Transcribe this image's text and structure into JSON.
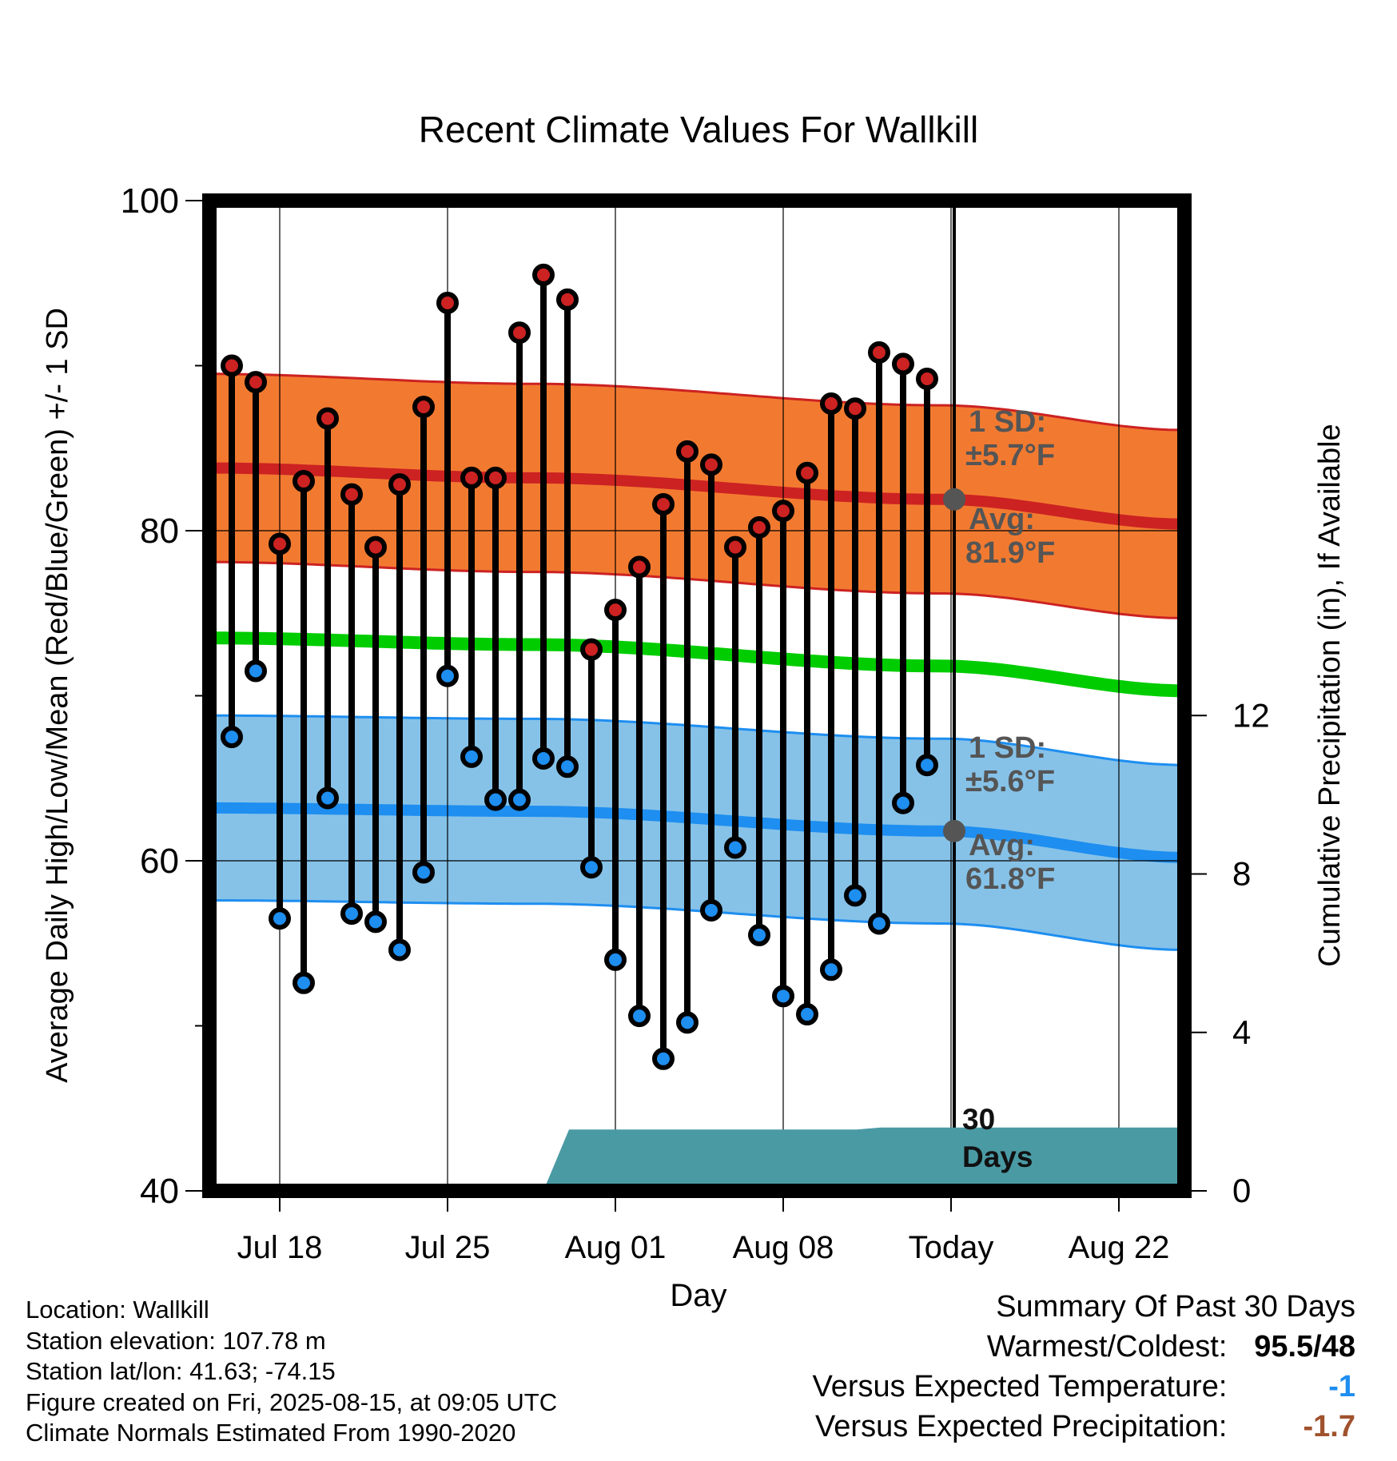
{
  "chart_data": {
    "type": "line",
    "title": "Recent Climate Values For Wallkill",
    "xlabel": "Day",
    "ylabel_left": "Average Daily High/Low/Mean (Red/Blue/Green) +/- 1 SD",
    "ylabel_right": "Cumulative Precipitation (in), If Available",
    "ylim_left": [
      40,
      100
    ],
    "ylim_right": [
      0,
      25
    ],
    "yticks_left": [
      "40",
      "60",
      "80",
      "100"
    ],
    "yticks_right": [
      "0",
      "4",
      "8",
      "12"
    ],
    "xticks": [
      "Jul 18",
      "Jul 25",
      "Aug 01",
      "Aug 08",
      "Today",
      "Aug 22"
    ],
    "daily_temps": [
      {
        "high": 90.0,
        "low": 67.5
      },
      {
        "high": 89.0,
        "low": 71.5
      },
      {
        "high": 79.2,
        "low": 56.5
      },
      {
        "high": 83.0,
        "low": 52.6
      },
      {
        "high": 86.8,
        "low": 63.8
      },
      {
        "high": 82.2,
        "low": 56.8
      },
      {
        "high": 79.0,
        "low": 56.3
      },
      {
        "high": 82.8,
        "low": 54.6
      },
      {
        "high": 87.5,
        "low": 59.3
      },
      {
        "high": 93.8,
        "low": 71.2
      },
      {
        "high": 83.2,
        "low": 66.3
      },
      {
        "high": 83.2,
        "low": 63.7
      },
      {
        "high": 92.0,
        "low": 63.7
      },
      {
        "high": 95.5,
        "low": 66.2
      },
      {
        "high": 94.0,
        "low": 65.7
      },
      {
        "high": 72.8,
        "low": 59.6
      },
      {
        "high": 75.2,
        "low": 54.0
      },
      {
        "high": 77.8,
        "low": 50.6
      },
      {
        "high": 81.6,
        "low": 48.0
      },
      {
        "high": 84.8,
        "low": 50.2
      },
      {
        "high": 84.0,
        "low": 57.0
      },
      {
        "high": 79.0,
        "low": 60.8
      },
      {
        "high": 80.2,
        "low": 55.5
      },
      {
        "high": 81.2,
        "low": 51.8
      },
      {
        "high": 83.5,
        "low": 50.7
      },
      {
        "high": 87.7,
        "low": 53.4
      },
      {
        "high": 87.4,
        "low": 57.9
      },
      {
        "high": 90.8,
        "low": 56.2
      },
      {
        "high": 90.1,
        "low": 63.5
      },
      {
        "high": 89.2,
        "low": 65.8
      }
    ],
    "normals": {
      "high_avg": [
        83.8,
        83.2,
        81.9,
        80.4
      ],
      "high_sd_upper": [
        89.5,
        88.9,
        87.6,
        86.1
      ],
      "high_sd_lower": [
        78.1,
        77.5,
        76.2,
        74.7
      ],
      "mean_avg": [
        73.5,
        73.1,
        71.8,
        70.3
      ],
      "low_avg": [
        63.2,
        63.0,
        61.8,
        60.2
      ],
      "low_sd_upper": [
        68.8,
        68.6,
        67.4,
        65.8
      ],
      "low_sd_lower": [
        57.6,
        57.4,
        56.2,
        54.6
      ]
    },
    "precip_cumulative": [
      0,
      0,
      0,
      0,
      0,
      0,
      0,
      0,
      0,
      0,
      0,
      0.1,
      0.1,
      0.1,
      0.1,
      1.55,
      1.55,
      1.55,
      1.55,
      1.55,
      1.55,
      1.55,
      1.55,
      1.55,
      1.55,
      1.55,
      1.55,
      1.55,
      1.6,
      1.6,
      1.6,
      1.6,
      1.6,
      1.6,
      1.6,
      1.6,
      1.6,
      1.6,
      1.6,
      1.6,
      1.6
    ],
    "annotations": {
      "high_sd_label": "1 SD:",
      "high_sd_value": "±5.7°F",
      "high_avg_label": "Avg:",
      "high_avg_value": "81.9°F",
      "low_sd_label": "1 SD:",
      "low_sd_value": "±5.6°F",
      "low_avg_label": "Avg:",
      "low_avg_value": "61.8°F",
      "window_label_1": "30",
      "window_label_2": "Days"
    },
    "colors": {
      "high": "#cc2222",
      "high_band": "#f27a30",
      "low": "#1e8ef0",
      "low_band": "#86c2e8",
      "mean": "#00cc00",
      "precip": "#4a9aa4",
      "annotation": "#555555"
    },
    "grid": true
  },
  "footer": {
    "location": "Location: Wallkill",
    "elevation": "Station elevation: 107.78 m",
    "latlon": "Station lat/lon: 41.63; -74.15",
    "created": "Figure created on Fri, 2025-08-15, at 09:05 UTC",
    "normals": "Climate Normals Estimated From 1990-2020"
  },
  "summary": {
    "title": "Summary Of Past 30 Days",
    "warm_cold_label": "Warmest/Coldest:",
    "warm_cold_value": "95.5/48",
    "temp_label": "Versus Expected Temperature:",
    "temp_value": "-1",
    "temp_color": "#1e8ef0",
    "precip_label": "Versus Expected Precipitation:",
    "precip_value": "-1.7",
    "precip_color": "#a0522d"
  }
}
